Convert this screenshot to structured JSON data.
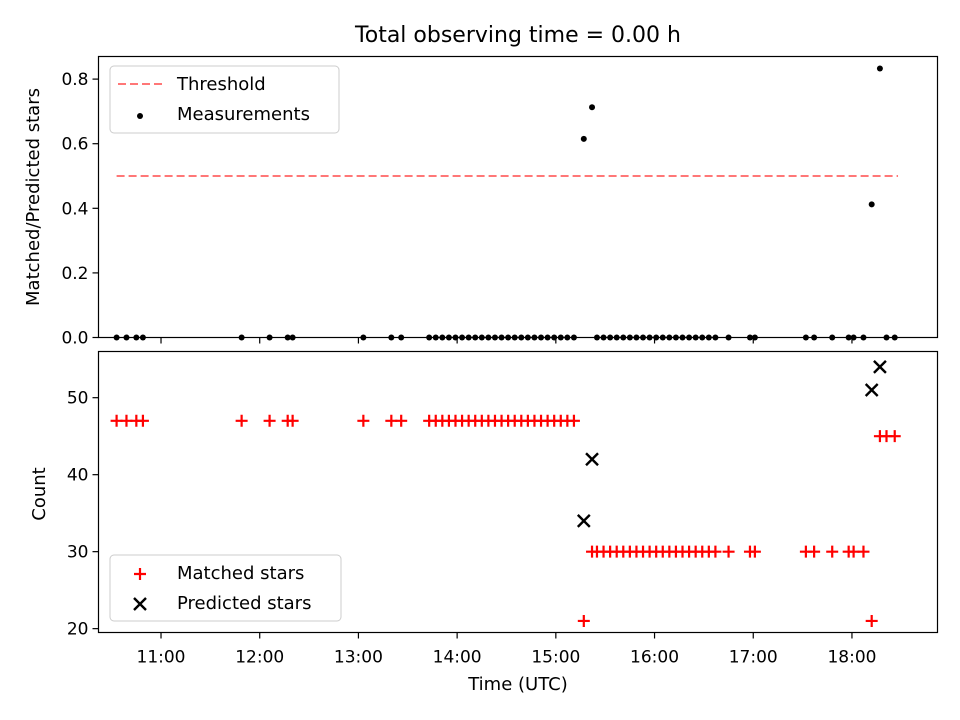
{
  "figure_title": "Total observing time = 0.00 h",
  "colors": {
    "threshold": "#ff7777",
    "measurement": "#000000",
    "matched": "#ff0000",
    "predicted": "#000000"
  },
  "chart_data": [
    {
      "type": "scatter",
      "title": "Total observing time = 0.00 h",
      "xlabel": "",
      "ylabel": "Matched/Predicted stars",
      "xlim": [
        "10:22",
        "18:52"
      ],
      "ylim": [
        0,
        0.87
      ],
      "yticks": [
        "0.0",
        "0.2",
        "0.4",
        "0.6",
        "0.8"
      ],
      "legend": {
        "placement": "top-left",
        "entries": [
          "Threshold",
          "Measurements"
        ]
      },
      "series": [
        {
          "name": "Threshold",
          "kind": "dashed-line",
          "x": [
            "10:33",
            "18:28"
          ],
          "y": [
            0.5,
            0.5
          ]
        },
        {
          "name": "Measurements",
          "kind": "dots",
          "points": [
            [
              "10:33",
              0.0
            ],
            [
              "10:39",
              0.0
            ],
            [
              "10:45",
              0.0
            ],
            [
              "10:49",
              0.0
            ],
            [
              "11:49",
              0.0
            ],
            [
              "12:06",
              0.0
            ],
            [
              "12:17",
              0.0
            ],
            [
              "12:20",
              0.0
            ],
            [
              "13:03",
              0.0
            ],
            [
              "13:20",
              0.0
            ],
            [
              "13:26",
              0.0
            ],
            [
              "13:43",
              0.0
            ],
            [
              "13:47",
              0.0
            ],
            [
              "13:51",
              0.0
            ],
            [
              "13:55",
              0.0
            ],
            [
              "13:59",
              0.0
            ],
            [
              "14:03",
              0.0
            ],
            [
              "14:07",
              0.0
            ],
            [
              "14:11",
              0.0
            ],
            [
              "14:15",
              0.0
            ],
            [
              "14:19",
              0.0
            ],
            [
              "14:23",
              0.0
            ],
            [
              "14:27",
              0.0
            ],
            [
              "14:31",
              0.0
            ],
            [
              "14:35",
              0.0
            ],
            [
              "14:39",
              0.0
            ],
            [
              "14:43",
              0.0
            ],
            [
              "14:47",
              0.0
            ],
            [
              "14:51",
              0.0
            ],
            [
              "14:55",
              0.0
            ],
            [
              "14:59",
              0.0
            ],
            [
              "15:03",
              0.0
            ],
            [
              "15:07",
              0.0
            ],
            [
              "15:11",
              0.0
            ],
            [
              "15:17",
              0.615
            ],
            [
              "15:22",
              0.713
            ],
            [
              "15:25",
              0.0
            ],
            [
              "15:29",
              0.0
            ],
            [
              "15:33",
              0.0
            ],
            [
              "15:37",
              0.0
            ],
            [
              "15:41",
              0.0
            ],
            [
              "15:45",
              0.0
            ],
            [
              "15:49",
              0.0
            ],
            [
              "15:53",
              0.0
            ],
            [
              "15:57",
              0.0
            ],
            [
              "16:01",
              0.0
            ],
            [
              "16:05",
              0.0
            ],
            [
              "16:09",
              0.0
            ],
            [
              "16:13",
              0.0
            ],
            [
              "16:17",
              0.0
            ],
            [
              "16:21",
              0.0
            ],
            [
              "16:25",
              0.0
            ],
            [
              "16:29",
              0.0
            ],
            [
              "16:33",
              0.0
            ],
            [
              "16:37",
              0.0
            ],
            [
              "16:45",
              0.0
            ],
            [
              "16:58",
              0.0
            ],
            [
              "17:01",
              0.0
            ],
            [
              "17:32",
              0.0
            ],
            [
              "17:37",
              0.0
            ],
            [
              "17:48",
              0.0
            ],
            [
              "17:58",
              0.0
            ],
            [
              "18:01",
              0.0
            ],
            [
              "18:07",
              0.0
            ],
            [
              "18:12",
              0.412
            ],
            [
              "18:17",
              0.833
            ],
            [
              "18:21",
              0.0
            ],
            [
              "18:26",
              0.0
            ]
          ]
        }
      ]
    },
    {
      "type": "scatter",
      "title": "",
      "xlabel": "Time (UTC)",
      "ylabel": "Count",
      "xlim": [
        "10:22",
        "18:52"
      ],
      "ylim": [
        19.5,
        56
      ],
      "xticks": [
        "11:00",
        "12:00",
        "13:00",
        "14:00",
        "15:00",
        "16:00",
        "17:00",
        "18:00"
      ],
      "yticks": [
        "20",
        "30",
        "40",
        "50"
      ],
      "legend": {
        "placement": "bottom-left",
        "entries": [
          "Matched stars",
          "Predicted stars"
        ]
      },
      "series": [
        {
          "name": "Matched stars",
          "kind": "plus",
          "points": [
            [
              "10:33",
              47
            ],
            [
              "10:39",
              47
            ],
            [
              "10:45",
              47
            ],
            [
              "10:49",
              47
            ],
            [
              "11:49",
              47
            ],
            [
              "12:06",
              47
            ],
            [
              "12:17",
              47
            ],
            [
              "12:20",
              47
            ],
            [
              "13:03",
              47
            ],
            [
              "13:20",
              47
            ],
            [
              "13:26",
              47
            ],
            [
              "13:43",
              47
            ],
            [
              "13:47",
              47
            ],
            [
              "13:51",
              47
            ],
            [
              "13:55",
              47
            ],
            [
              "13:59",
              47
            ],
            [
              "14:03",
              47
            ],
            [
              "14:07",
              47
            ],
            [
              "14:11",
              47
            ],
            [
              "14:15",
              47
            ],
            [
              "14:19",
              47
            ],
            [
              "14:23",
              47
            ],
            [
              "14:27",
              47
            ],
            [
              "14:31",
              47
            ],
            [
              "14:35",
              47
            ],
            [
              "14:39",
              47
            ],
            [
              "14:43",
              47
            ],
            [
              "14:47",
              47
            ],
            [
              "14:51",
              47
            ],
            [
              "14:55",
              47
            ],
            [
              "14:59",
              47
            ],
            [
              "15:03",
              47
            ],
            [
              "15:07",
              47
            ],
            [
              "15:11",
              47
            ],
            [
              "15:17",
              21
            ],
            [
              "15:22",
              30
            ],
            [
              "15:25",
              30
            ],
            [
              "15:29",
              30
            ],
            [
              "15:33",
              30
            ],
            [
              "15:37",
              30
            ],
            [
              "15:41",
              30
            ],
            [
              "15:45",
              30
            ],
            [
              "15:49",
              30
            ],
            [
              "15:53",
              30
            ],
            [
              "15:57",
              30
            ],
            [
              "16:01",
              30
            ],
            [
              "16:05",
              30
            ],
            [
              "16:09",
              30
            ],
            [
              "16:13",
              30
            ],
            [
              "16:17",
              30
            ],
            [
              "16:21",
              30
            ],
            [
              "16:25",
              30
            ],
            [
              "16:29",
              30
            ],
            [
              "16:33",
              30
            ],
            [
              "16:37",
              30
            ],
            [
              "16:45",
              30
            ],
            [
              "16:58",
              30
            ],
            [
              "17:01",
              30
            ],
            [
              "17:32",
              30
            ],
            [
              "17:37",
              30
            ],
            [
              "17:48",
              30
            ],
            [
              "17:58",
              30
            ],
            [
              "18:01",
              30
            ],
            [
              "18:07",
              30
            ],
            [
              "18:12",
              21
            ],
            [
              "18:17",
              45
            ],
            [
              "18:21",
              45
            ],
            [
              "18:26",
              45
            ]
          ]
        },
        {
          "name": "Predicted stars",
          "kind": "x",
          "points": [
            [
              "15:17",
              34
            ],
            [
              "15:22",
              42
            ],
            [
              "18:12",
              51
            ],
            [
              "18:17",
              54
            ]
          ]
        }
      ]
    }
  ]
}
